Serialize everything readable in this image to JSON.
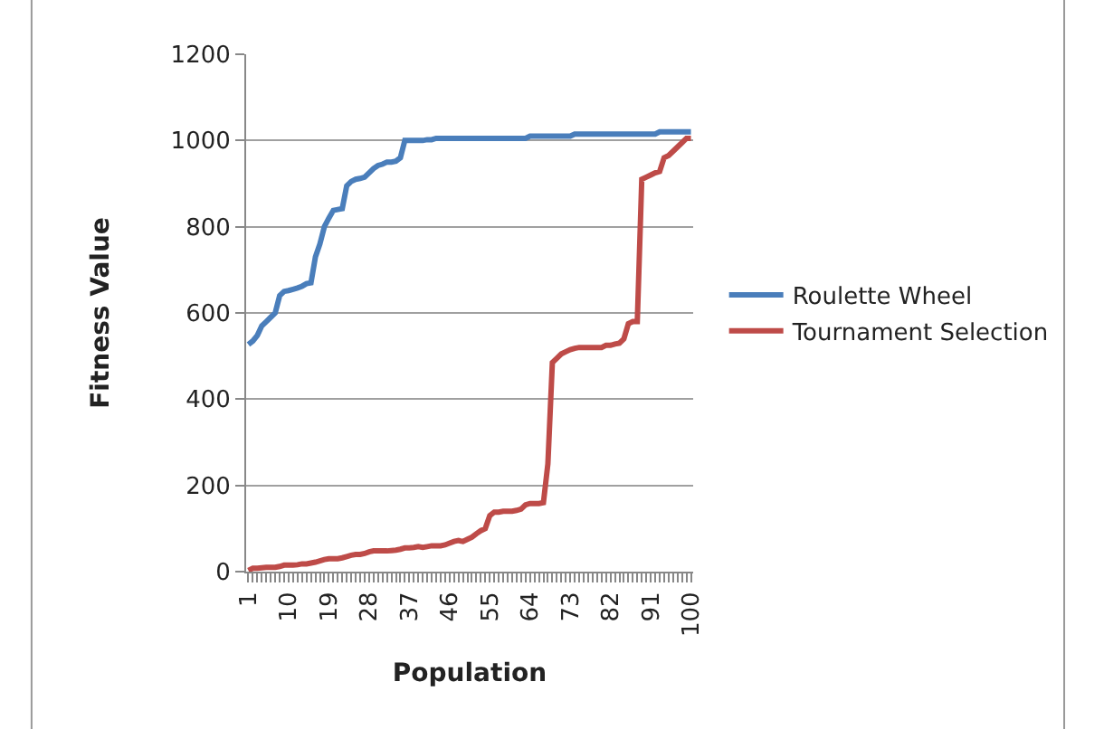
{
  "chart_data": {
    "type": "line",
    "xlabel": "Population",
    "ylabel": "Fitness Value",
    "categories": [
      "1",
      null,
      null,
      null,
      null,
      null,
      null,
      null,
      null,
      "10",
      null,
      null,
      null,
      null,
      null,
      null,
      null,
      null,
      "19",
      null,
      null,
      null,
      null,
      null,
      null,
      null,
      null,
      "28",
      null,
      null,
      null,
      null,
      null,
      null,
      null,
      null,
      "37",
      null,
      null,
      null,
      null,
      null,
      null,
      null,
      null,
      "46",
      null,
      null,
      null,
      null,
      null,
      null,
      null,
      null,
      "55",
      null,
      null,
      null,
      null,
      null,
      null,
      null,
      null,
      "64",
      null,
      null,
      null,
      null,
      null,
      null,
      null,
      null,
      "73",
      null,
      null,
      null,
      null,
      null,
      null,
      null,
      null,
      "82",
      null,
      null,
      null,
      null,
      null,
      null,
      null,
      null,
      "91",
      null,
      null,
      null,
      null,
      null,
      null,
      null,
      null,
      "100"
    ],
    "series": [
      {
        "name": "Roulette Wheel",
        "color": "#4a7ebb",
        "values": [
          527,
          535,
          548,
          570,
          580,
          590,
          600,
          640,
          650,
          652,
          655,
          658,
          662,
          668,
          670,
          730,
          760,
          800,
          820,
          838,
          840,
          842,
          895,
          905,
          910,
          912,
          915,
          925,
          935,
          942,
          945,
          950,
          950,
          952,
          960,
          1000,
          1000,
          1000,
          1000,
          1000,
          1002,
          1002,
          1005,
          1005,
          1005,
          1005,
          1005,
          1005,
          1005,
          1005,
          1005,
          1005,
          1005,
          1005,
          1005,
          1005,
          1005,
          1005,
          1005,
          1005,
          1005,
          1005,
          1005,
          1010,
          1010,
          1010,
          1010,
          1010,
          1010,
          1010,
          1010,
          1010,
          1010,
          1015,
          1015,
          1015,
          1015,
          1015,
          1015,
          1015,
          1015,
          1015,
          1015,
          1015,
          1015,
          1015,
          1015,
          1015,
          1015,
          1015,
          1015,
          1015,
          1020,
          1020,
          1020,
          1020,
          1020,
          1020,
          1020,
          1020
        ]
      },
      {
        "name": "Tournament Selection",
        "color": "#be4b48",
        "values": [
          3,
          8,
          8,
          9,
          10,
          10,
          10,
          12,
          15,
          15,
          15,
          16,
          18,
          18,
          20,
          22,
          25,
          28,
          30,
          30,
          30,
          32,
          35,
          38,
          40,
          40,
          42,
          46,
          48,
          48,
          48,
          48,
          49,
          50,
          52,
          55,
          55,
          56,
          58,
          56,
          58,
          60,
          60,
          60,
          62,
          66,
          70,
          72,
          70,
          75,
          80,
          88,
          95,
          100,
          130,
          138,
          138,
          140,
          140,
          140,
          142,
          145,
          155,
          158,
          158,
          158,
          160,
          250,
          485,
          495,
          505,
          510,
          515,
          518,
          520,
          520,
          520,
          520,
          520,
          520,
          525,
          525,
          528,
          530,
          540,
          575,
          580,
          580,
          910,
          915,
          920,
          925,
          928,
          960,
          965,
          975,
          985,
          995,
          1005,
          1005
        ]
      }
    ],
    "ylim": [
      0,
      1200
    ],
    "yticks": [
      0,
      200,
      400,
      600,
      800,
      1000,
      1200
    ],
    "grid": "y",
    "legend": "right",
    "marker": "none",
    "line_style": "solid"
  }
}
